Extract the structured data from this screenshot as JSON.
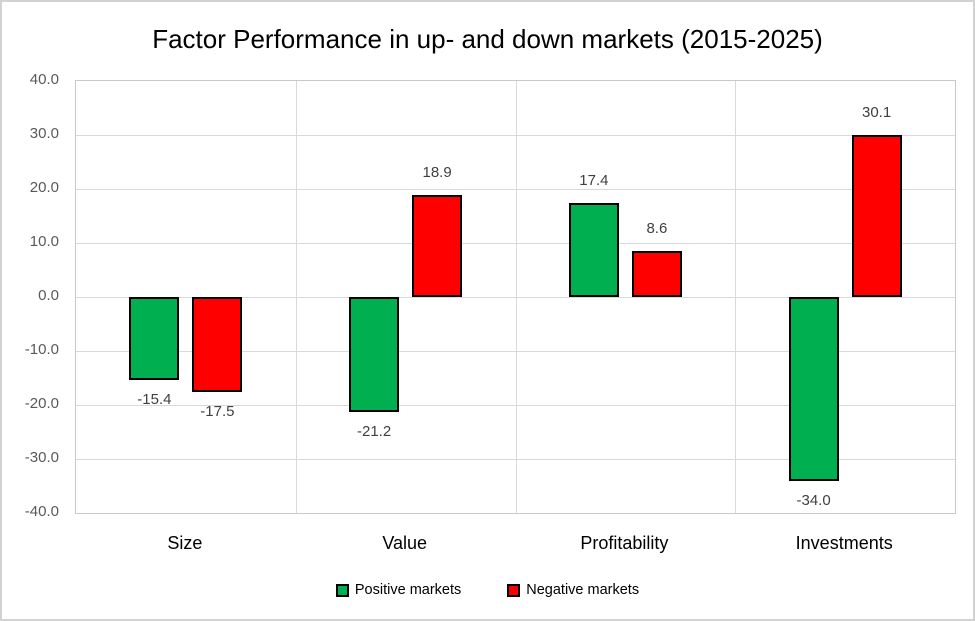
{
  "chart_data": {
    "type": "bar",
    "title": "Factor Performance in up- and down markets (2015-2025)",
    "categories": [
      "Size",
      "Value",
      "Profitability",
      "Investments"
    ],
    "series": [
      {
        "name": "Positive markets",
        "color": "#00B050",
        "values": [
          -15.4,
          -21.2,
          17.4,
          -34.0
        ],
        "labels": [
          "-15.4",
          "-21.2",
          "17.4",
          "-34.0"
        ]
      },
      {
        "name": "Negative markets",
        "color": "#FF0000",
        "values": [
          -17.5,
          18.9,
          8.6,
          30.1
        ],
        "labels": [
          "-17.5",
          "18.9",
          "8.6",
          "30.1"
        ]
      }
    ],
    "xlabel": "",
    "ylabel": "",
    "ylim": [
      -40,
      40
    ],
    "ytick_step": 10,
    "ytick_labels": [
      "40.0",
      "30.0",
      "20.0",
      "10.0",
      "0.0",
      "-10.0",
      "-20.0",
      "-30.0",
      "-40.0"
    ],
    "grid": true,
    "legend_position": "bottom"
  },
  "colors": {
    "positive_series": "#00B050",
    "negative_series": "#FF0000",
    "bar_border": "#000000",
    "gridline": "#D9D9D9",
    "axis_tick_label": "#595959",
    "data_label": "#404040",
    "category_label": "#000000",
    "frame_border": "#D2D2D2",
    "background": "#FFFFFF"
  }
}
